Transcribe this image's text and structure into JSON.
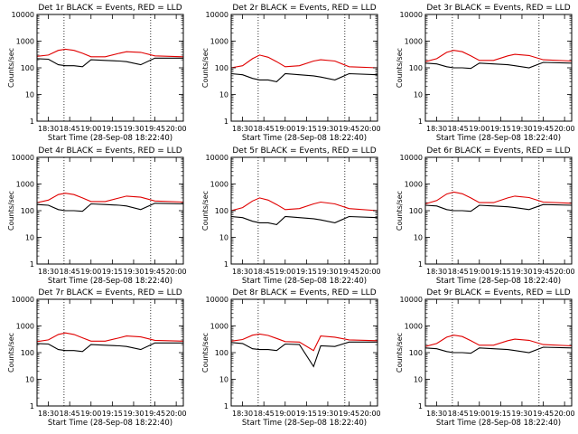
{
  "common": {
    "xlabel": "Start Time (28-Sep-08 18:22:40)",
    "ylabel": "Counts/sec",
    "x_tick_labels": [
      "18:30",
      "18:45",
      "19:00",
      "19:15",
      "19:30",
      "19:45",
      "20:00"
    ],
    "y_tick_labels": [
      "1",
      "10",
      "100",
      "1000",
      "10000"
    ],
    "ylim": [
      1,
      10000
    ],
    "y_scale": "log",
    "legend_text": {
      "black": "BLACK = Events",
      "red": "RED = LLD"
    },
    "colors": {
      "events": "#000000",
      "lld": "#e00000",
      "axis": "#000000"
    }
  },
  "chart_data": [
    {
      "type": "line",
      "title": "Det 1r BLACK = Events, RED = LLD",
      "series": [
        {
          "name": "Events",
          "color": "#000000",
          "x": [
            "18:22",
            "18:30",
            "18:37",
            "18:42",
            "18:48",
            "18:54",
            "19:00",
            "19:10",
            "19:20",
            "19:25",
            "19:35",
            "19:45",
            "20:05"
          ],
          "values": [
            220,
            210,
            130,
            120,
            120,
            110,
            200,
            190,
            180,
            170,
            130,
            230,
            230
          ]
        },
        {
          "name": "LLD",
          "color": "#e00000",
          "x": [
            "18:22",
            "18:30",
            "18:37",
            "18:42",
            "18:48",
            "18:54",
            "19:00",
            "19:10",
            "19:20",
            "19:25",
            "19:35",
            "19:45",
            "20:05"
          ],
          "values": [
            270,
            300,
            450,
            500,
            450,
            350,
            260,
            260,
            350,
            400,
            380,
            280,
            260
          ]
        }
      ]
    },
    {
      "type": "line",
      "title": "Det 2r BLACK = Events, RED = LLD",
      "series": [
        {
          "name": "Events",
          "color": "#000000",
          "x": [
            "18:22",
            "18:30",
            "18:37",
            "18:42",
            "18:48",
            "18:54",
            "19:00",
            "19:10",
            "19:20",
            "19:25",
            "19:35",
            "19:45",
            "20:05"
          ],
          "values": [
            60,
            55,
            40,
            35,
            35,
            30,
            60,
            55,
            50,
            45,
            35,
            60,
            55
          ]
        },
        {
          "name": "LLD",
          "color": "#e00000",
          "x": [
            "18:22",
            "18:30",
            "18:37",
            "18:42",
            "18:48",
            "18:54",
            "19:00",
            "19:10",
            "19:20",
            "19:25",
            "19:35",
            "19:45",
            "20:05"
          ],
          "values": [
            100,
            120,
            220,
            300,
            250,
            170,
            110,
            120,
            180,
            200,
            180,
            110,
            100
          ]
        }
      ]
    },
    {
      "type": "line",
      "title": "Det 3r BLACK = Events, RED = LLD",
      "series": [
        {
          "name": "Events",
          "color": "#000000",
          "x": [
            "18:22",
            "18:30",
            "18:37",
            "18:42",
            "18:48",
            "18:54",
            "19:00",
            "19:10",
            "19:20",
            "19:25",
            "19:35",
            "19:45",
            "20:05"
          ],
          "values": [
            150,
            140,
            110,
            100,
            100,
            95,
            150,
            140,
            130,
            120,
            100,
            160,
            150
          ]
        },
        {
          "name": "LLD",
          "color": "#e00000",
          "x": [
            "18:22",
            "18:30",
            "18:37",
            "18:42",
            "18:48",
            "18:54",
            "19:00",
            "19:10",
            "19:20",
            "19:25",
            "19:35",
            "19:45",
            "20:05"
          ],
          "values": [
            170,
            220,
            380,
            450,
            400,
            280,
            190,
            190,
            280,
            320,
            290,
            200,
            180
          ]
        }
      ]
    },
    {
      "type": "line",
      "title": "Det 4r BLACK = Events, RED = LLD",
      "series": [
        {
          "name": "Events",
          "color": "#000000",
          "x": [
            "18:22",
            "18:30",
            "18:37",
            "18:42",
            "18:48",
            "18:54",
            "19:00",
            "19:10",
            "19:20",
            "19:25",
            "19:35",
            "19:45",
            "20:05"
          ],
          "values": [
            170,
            160,
            110,
            100,
            100,
            95,
            180,
            170,
            160,
            150,
            110,
            190,
            180
          ]
        },
        {
          "name": "LLD",
          "color": "#e00000",
          "x": [
            "18:22",
            "18:30",
            "18:37",
            "18:42",
            "18:48",
            "18:54",
            "19:00",
            "19:10",
            "19:20",
            "19:25",
            "19:35",
            "19:45",
            "20:05"
          ],
          "values": [
            200,
            250,
            400,
            450,
            400,
            300,
            220,
            220,
            300,
            350,
            320,
            230,
            210
          ]
        }
      ]
    },
    {
      "type": "line",
      "title": "Det 5r BLACK = Events, RED = LLD",
      "series": [
        {
          "name": "Events",
          "color": "#000000",
          "x": [
            "18:22",
            "18:30",
            "18:37",
            "18:42",
            "18:48",
            "18:54",
            "19:00",
            "19:10",
            "19:20",
            "19:25",
            "19:35",
            "19:45",
            "20:05"
          ],
          "values": [
            60,
            55,
            40,
            35,
            35,
            30,
            60,
            55,
            50,
            45,
            35,
            60,
            55
          ]
        },
        {
          "name": "LLD",
          "color": "#e00000",
          "x": [
            "18:22",
            "18:30",
            "18:37",
            "18:42",
            "18:48",
            "18:54",
            "19:00",
            "19:10",
            "19:20",
            "19:25",
            "19:35",
            "19:45",
            "20:05"
          ],
          "values": [
            100,
            130,
            230,
            300,
            250,
            170,
            110,
            120,
            180,
            210,
            180,
            120,
            100
          ]
        }
      ]
    },
    {
      "type": "line",
      "title": "Det 6r BLACK = Events, RED = LLD",
      "series": [
        {
          "name": "Events",
          "color": "#000000",
          "x": [
            "18:22",
            "18:30",
            "18:37",
            "18:42",
            "18:48",
            "18:54",
            "19:00",
            "19:10",
            "19:20",
            "19:25",
            "19:35",
            "19:45",
            "20:05"
          ],
          "values": [
            160,
            150,
            110,
            100,
            100,
            95,
            160,
            150,
            140,
            130,
            110,
            170,
            160
          ]
        },
        {
          "name": "LLD",
          "color": "#e00000",
          "x": [
            "18:22",
            "18:30",
            "18:37",
            "18:42",
            "18:48",
            "18:54",
            "19:00",
            "19:10",
            "19:20",
            "19:25",
            "19:35",
            "19:45",
            "20:05"
          ],
          "values": [
            180,
            240,
            420,
            500,
            430,
            300,
            200,
            200,
            300,
            350,
            310,
            210,
            190
          ]
        }
      ]
    },
    {
      "type": "line",
      "title": "Det 7r BLACK = Events, RED = LLD",
      "series": [
        {
          "name": "Events",
          "color": "#000000",
          "x": [
            "18:22",
            "18:30",
            "18:37",
            "18:42",
            "18:48",
            "18:54",
            "19:00",
            "19:10",
            "19:20",
            "19:25",
            "19:35",
            "19:45",
            "20:05"
          ],
          "values": [
            220,
            210,
            130,
            120,
            120,
            110,
            200,
            190,
            180,
            170,
            130,
            230,
            230
          ]
        },
        {
          "name": "LLD",
          "color": "#e00000",
          "x": [
            "18:22",
            "18:30",
            "18:37",
            "18:42",
            "18:48",
            "18:54",
            "19:00",
            "19:10",
            "19:20",
            "19:25",
            "19:35",
            "19:45",
            "20:05"
          ],
          "values": [
            260,
            300,
            480,
            550,
            480,
            360,
            270,
            270,
            360,
            420,
            390,
            290,
            270
          ]
        }
      ]
    },
    {
      "type": "line",
      "title": "Det 8r BLACK = Events, RED = LLD",
      "series": [
        {
          "name": "Events",
          "color": "#000000",
          "x": [
            "18:22",
            "18:30",
            "18:37",
            "18:42",
            "18:48",
            "18:54",
            "19:00",
            "19:10",
            "19:20",
            "19:25",
            "19:35",
            "19:45",
            "20:05"
          ],
          "values": [
            240,
            220,
            140,
            130,
            130,
            120,
            210,
            200,
            30,
            180,
            170,
            250,
            250
          ]
        },
        {
          "name": "LLD",
          "color": "#e00000",
          "x": [
            "18:22",
            "18:30",
            "18:37",
            "18:42",
            "18:48",
            "18:54",
            "19:00",
            "19:10",
            "19:20",
            "19:25",
            "19:35",
            "19:45",
            "20:05"
          ],
          "values": [
            270,
            310,
            450,
            500,
            440,
            340,
            260,
            250,
            120,
            420,
            380,
            300,
            280
          ]
        }
      ]
    },
    {
      "type": "line",
      "title": "Det 9r BLACK = Events, RED = LLD",
      "series": [
        {
          "name": "Events",
          "color": "#000000",
          "x": [
            "18:22",
            "18:30",
            "18:37",
            "18:42",
            "18:48",
            "18:54",
            "19:00",
            "19:10",
            "19:20",
            "19:25",
            "19:35",
            "19:45",
            "20:05"
          ],
          "values": [
            150,
            140,
            110,
            100,
            100,
            95,
            150,
            140,
            130,
            120,
            100,
            160,
            150
          ]
        },
        {
          "name": "LLD",
          "color": "#e00000",
          "x": [
            "18:22",
            "18:30",
            "18:37",
            "18:42",
            "18:48",
            "18:54",
            "19:00",
            "19:10",
            "19:20",
            "19:25",
            "19:35",
            "19:45",
            "20:05"
          ],
          "values": [
            170,
            220,
            380,
            450,
            400,
            280,
            190,
            190,
            280,
            320,
            290,
            200,
            180
          ]
        }
      ]
    }
  ]
}
